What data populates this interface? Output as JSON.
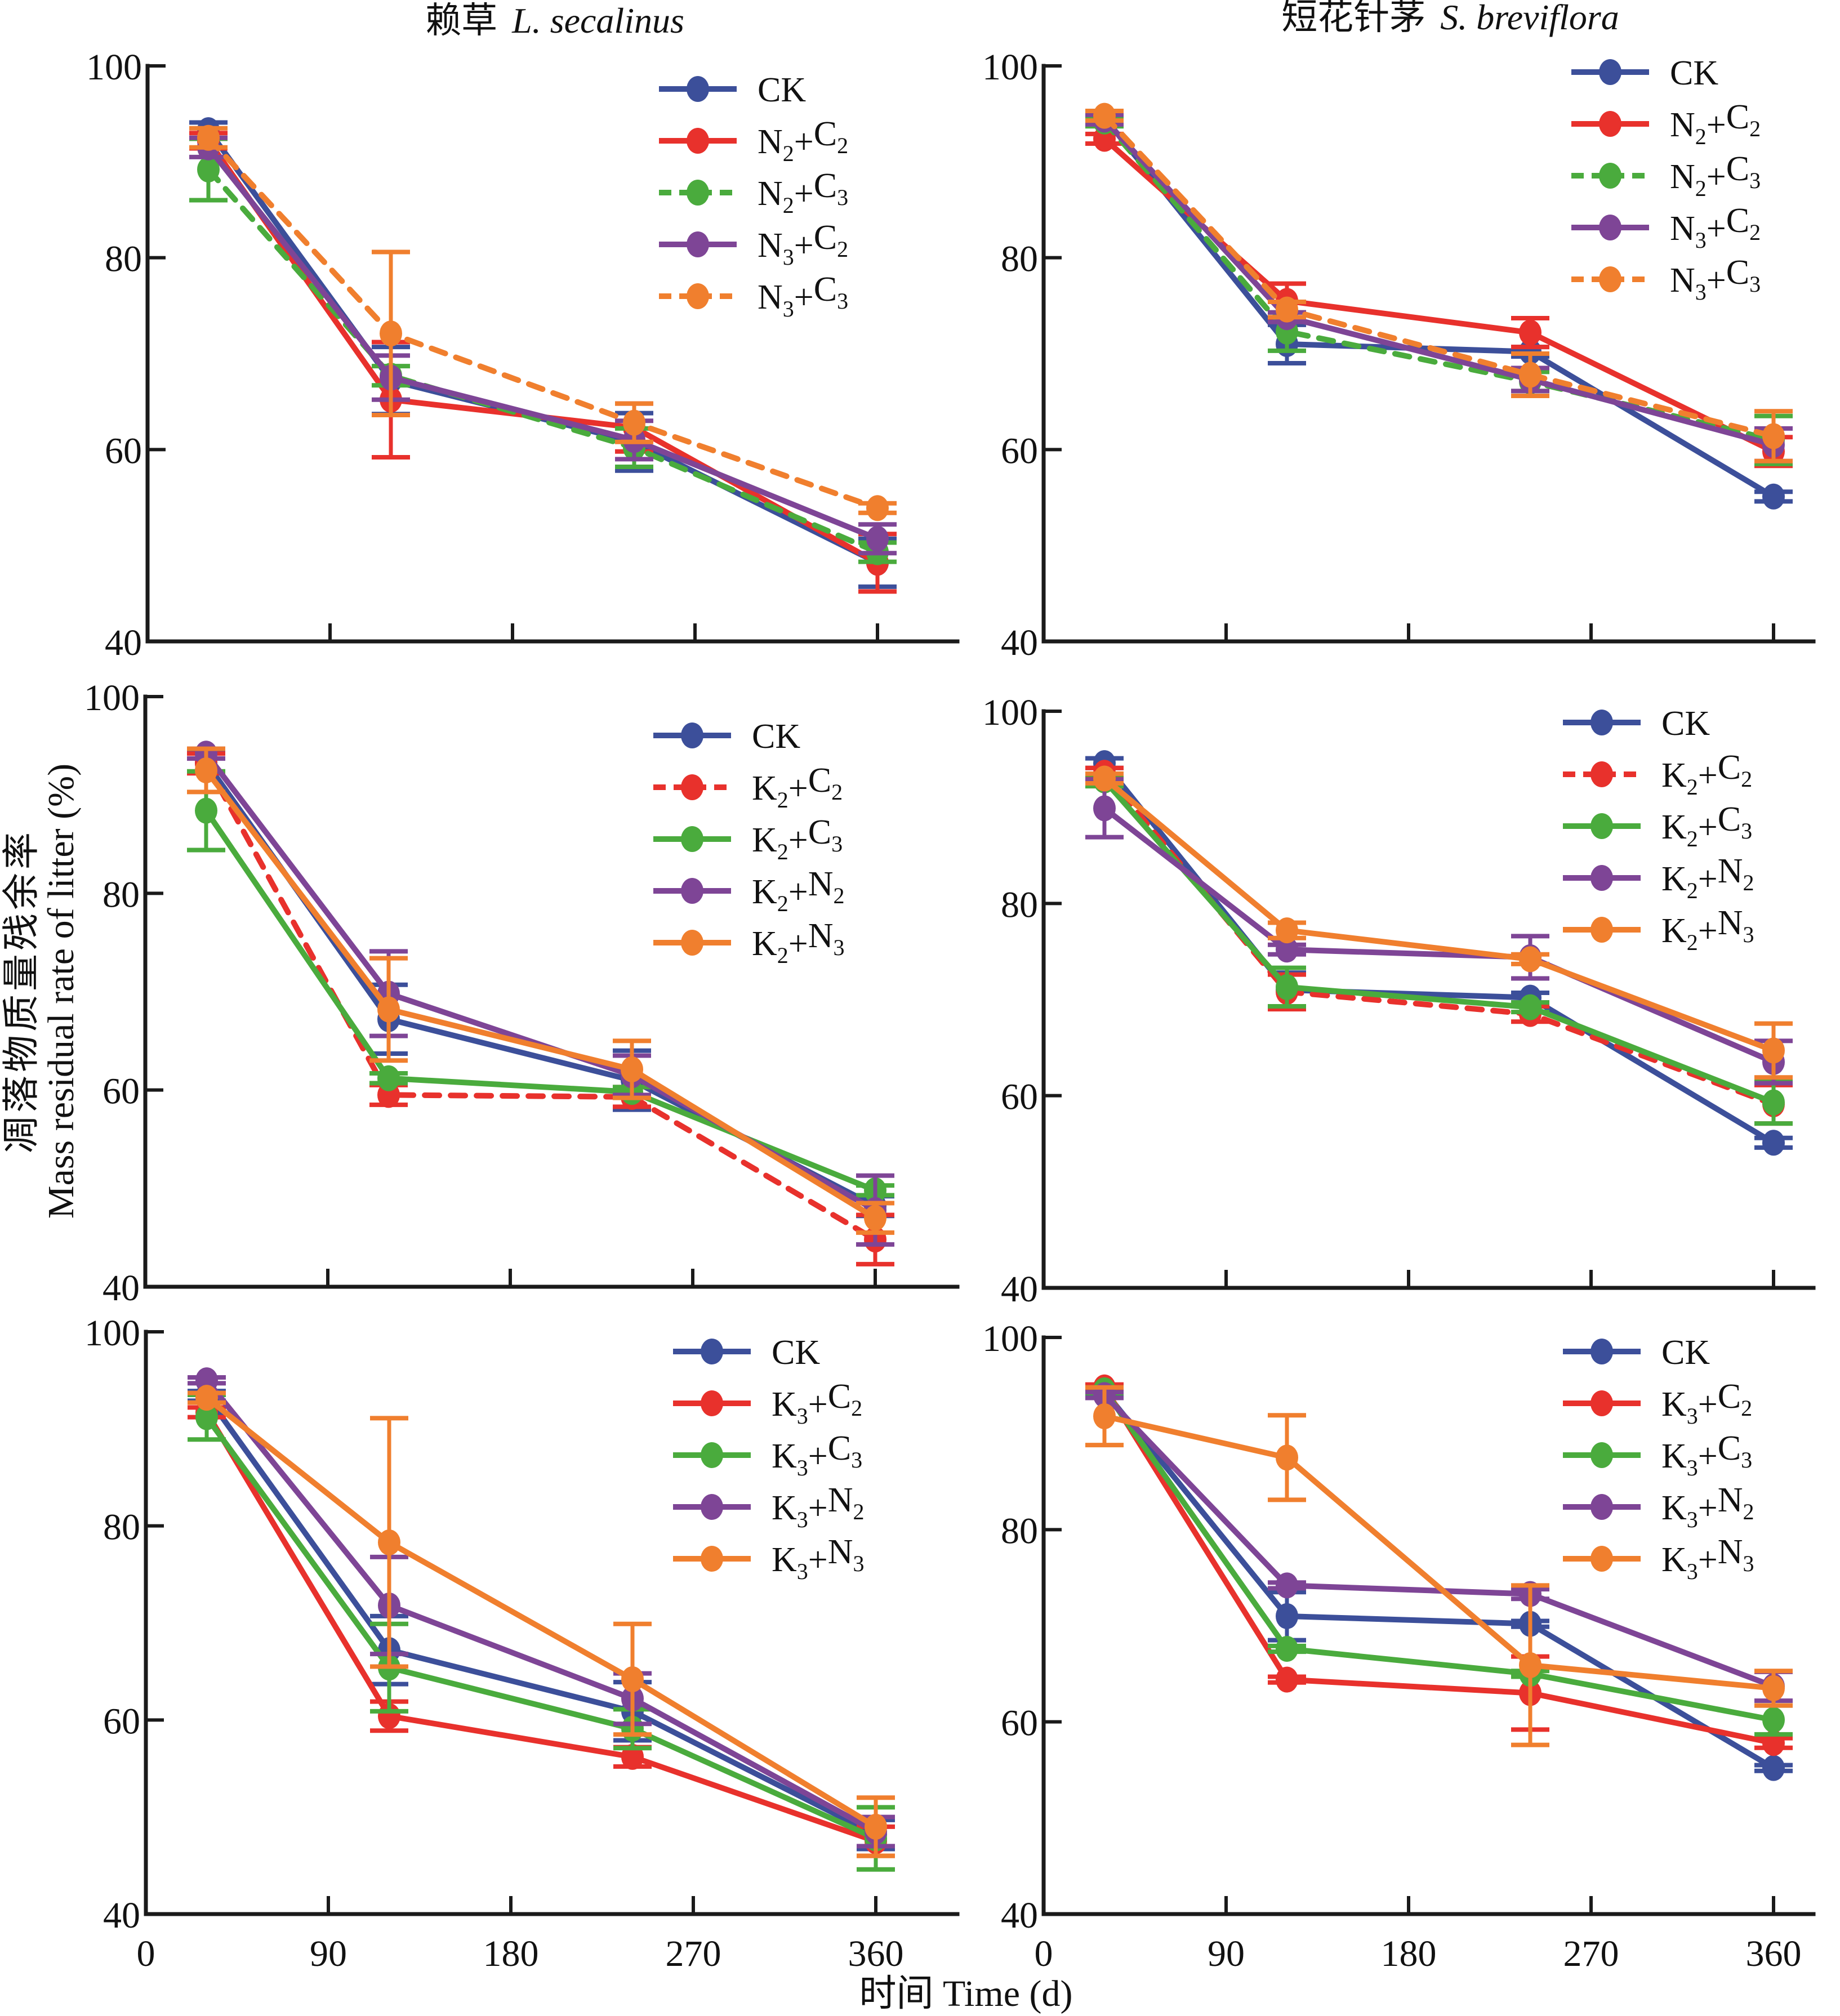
{
  "figure": {
    "ylabel_cn": "凋落物质量残余率",
    "ylabel_en": "Mass residual rate of litter (%)",
    "xlabel": "时间 Time (d)",
    "column_titles": [
      {
        "cn": "赖草",
        "latin": "L. secalinus"
      },
      {
        "cn": "短花针茅",
        "latin": "S. breviflora"
      }
    ]
  },
  "colors": {
    "CK": "#3c4f9a",
    "red": "#e8312c",
    "green": "#4aab3d",
    "purple": "#7e4596",
    "orange": "#f07f2e",
    "axis": "#1a1a1a"
  },
  "chart_data": [
    {
      "type": "line",
      "panel": "top-left",
      "title": "赖草 L. secalinus",
      "xlabel": "时间 Time (d)",
      "ylabel": "Mass residual rate of litter (%)",
      "x": [
        30,
        120,
        240,
        360
      ],
      "xlim": [
        0,
        400
      ],
      "ylim": [
        40,
        100
      ],
      "xticks": [
        0,
        90,
        180,
        270,
        360
      ],
      "yticks": [
        40,
        60,
        80,
        100
      ],
      "show_xtick_labels": false,
      "legend_position": "top-right",
      "series": [
        {
          "name": "CK",
          "base": "N",
          "sub1": "",
          "op": "",
          "base2": "",
          "sub2": "",
          "color": "#3c4f9a",
          "dashed": false,
          "values": [
            93.3,
            67.2,
            60.8,
            48.2
          ],
          "errors": [
            0.8,
            3.5,
            3.0,
            2.5
          ]
        },
        {
          "name": "N2+C2",
          "base": "N",
          "sub1": "2",
          "op": "+",
          "base2": "C",
          "sub2": "2",
          "color": "#e8312c",
          "dashed": false,
          "values": [
            92.2,
            65.2,
            62.3,
            48.2
          ],
          "errors": [
            0.8,
            6.0,
            2.5,
            3.0
          ]
        },
        {
          "name": "N2+C3",
          "base": "N",
          "sub1": "2",
          "op": "+",
          "base2": "C",
          "sub2": "3",
          "color": "#4aab3d",
          "dashed": true,
          "values": [
            89.2,
            67.7,
            60.2,
            49.3
          ],
          "errors": [
            3.2,
            1.0,
            2.0,
            1.0
          ]
        },
        {
          "name": "N3+C2",
          "base": "N",
          "sub1": "3",
          "op": "+",
          "base2": "C",
          "sub2": "2",
          "color": "#7e4596",
          "dashed": false,
          "values": [
            91.5,
            67.5,
            61.0,
            50.7
          ],
          "errors": [
            1.0,
            2.3,
            2.0,
            1.5
          ]
        },
        {
          "name": "N3+C3",
          "base": "N",
          "sub1": "3",
          "op": "+",
          "base2": "C",
          "sub2": "3",
          "color": "#f07f2e",
          "dashed": true,
          "values": [
            92.5,
            72.1,
            62.8,
            53.9
          ],
          "errors": [
            1.0,
            8.5,
            2.0,
            0.5
          ]
        }
      ]
    },
    {
      "type": "line",
      "panel": "top-right",
      "title": "短花针茅 S. breviflora",
      "x": [
        30,
        120,
        240,
        360
      ],
      "xlim": [
        0,
        400
      ],
      "ylim": [
        40,
        100
      ],
      "xticks": [
        0,
        90,
        180,
        270,
        360
      ],
      "yticks": [
        40,
        60,
        80,
        100
      ],
      "show_xtick_labels": false,
      "legend_position": "top-right",
      "series": [
        {
          "name": "CK",
          "color": "#3c4f9a",
          "dashed": false,
          "values": [
            94.6,
            71.0,
            70.2,
            55.1
          ],
          "errors": [
            0.5,
            2.0,
            0.5,
            0.5
          ]
        },
        {
          "name": "N2+C2",
          "color": "#e8312c",
          "dashed": false,
          "values": [
            92.4,
            75.5,
            72.2,
            59.8
          ],
          "errors": [
            0.5,
            1.8,
            1.5,
            1.5
          ]
        },
        {
          "name": "N2+C3",
          "color": "#4aab3d",
          "dashed": true,
          "values": [
            94.2,
            72.3,
            67.1,
            61.0
          ],
          "errors": [
            0.5,
            2.0,
            1.0,
            2.5
          ]
        },
        {
          "name": "N3+C2",
          "color": "#7e4596",
          "dashed": false,
          "values": [
            94.4,
            73.8,
            67.3,
            60.5
          ],
          "errors": [
            0.5,
            0.5,
            1.2,
            1.7
          ]
        },
        {
          "name": "N3+C3",
          "color": "#f07f2e",
          "dashed": true,
          "values": [
            94.8,
            74.6,
            67.8,
            61.4
          ],
          "errors": [
            0.5,
            0.8,
            2.2,
            2.6
          ]
        }
      ]
    },
    {
      "type": "line",
      "panel": "middle-left",
      "x": [
        30,
        120,
        240,
        360
      ],
      "xlim": [
        0,
        400
      ],
      "ylim": [
        40,
        100
      ],
      "xticks": [
        0,
        90,
        180,
        270,
        360
      ],
      "yticks": [
        40,
        60,
        80,
        100
      ],
      "show_xtick_labels": false,
      "legend_position": "top-right",
      "series": [
        {
          "name": "CK",
          "color": "#3c4f9a",
          "dashed": false,
          "values": [
            93.3,
            67.2,
            61.0,
            48.2
          ],
          "errors": [
            1.0,
            3.5,
            3.0,
            1.0
          ]
        },
        {
          "name": "K2+C2",
          "color": "#e8312c",
          "dashed": true,
          "values": [
            93.2,
            59.5,
            59.3,
            44.8
          ],
          "errors": [
            1.0,
            1.0,
            1.0,
            2.5
          ]
        },
        {
          "name": "K2+C3",
          "color": "#4aab3d",
          "dashed": false,
          "values": [
            88.4,
            61.2,
            59.8,
            49.8
          ],
          "errors": [
            4.0,
            0.5,
            0.5,
            0.5
          ]
        },
        {
          "name": "K2+N2",
          "color": "#7e4596",
          "dashed": false,
          "values": [
            94.2,
            69.8,
            61.5,
            47.8
          ],
          "errors": [
            0.5,
            4.3,
            2.0,
            3.5
          ]
        },
        {
          "name": "K2+N3",
          "color": "#f07f2e",
          "dashed": false,
          "values": [
            92.5,
            68.2,
            62.1,
            47.0
          ],
          "errors": [
            2.2,
            5.2,
            2.9,
            1.5
          ]
        }
      ]
    },
    {
      "type": "line",
      "panel": "middle-right",
      "x": [
        30,
        120,
        240,
        360
      ],
      "xlim": [
        0,
        400
      ],
      "ylim": [
        40,
        100
      ],
      "xticks": [
        0,
        90,
        180,
        270,
        360
      ],
      "yticks": [
        40,
        60,
        80,
        100
      ],
      "show_xtick_labels": false,
      "legend_position": "top-right",
      "series": [
        {
          "name": "CK",
          "color": "#3c4f9a",
          "dashed": false,
          "values": [
            94.6,
            71.0,
            70.2,
            55.1
          ],
          "errors": [
            0.5,
            1.8,
            0.5,
            0.5
          ]
        },
        {
          "name": "K2+C2",
          "color": "#e8312c",
          "dashed": true,
          "values": [
            93.6,
            70.8,
            68.5,
            59.1
          ],
          "errors": [
            0.5,
            1.8,
            0.8,
            2.0
          ]
        },
        {
          "name": "K2+C3",
          "color": "#4aab3d",
          "dashed": false,
          "values": [
            92.8,
            71.3,
            69.2,
            59.3
          ],
          "errors": [
            0.6,
            2.0,
            0.5,
            2.2
          ]
        },
        {
          "name": "K2+N2",
          "color": "#7e4596",
          "dashed": false,
          "values": [
            89.9,
            75.2,
            74.4,
            63.5
          ],
          "errors": [
            3.0,
            0.5,
            2.2,
            2.2
          ]
        },
        {
          "name": "K2+N3",
          "color": "#f07f2e",
          "dashed": false,
          "values": [
            93.0,
            77.2,
            74.2,
            64.7
          ],
          "errors": [
            0.5,
            0.8,
            0.5,
            2.8
          ]
        }
      ]
    },
    {
      "type": "line",
      "panel": "bottom-left",
      "x": [
        30,
        120,
        240,
        360
      ],
      "xlim": [
        0,
        400
      ],
      "ylim": [
        40,
        100
      ],
      "xticks": [
        0,
        90,
        180,
        270,
        360
      ],
      "yticks": [
        40,
        60,
        80,
        100
      ],
      "show_xtick_labels": true,
      "legend_position": "top-right",
      "series": [
        {
          "name": "CK",
          "color": "#3c4f9a",
          "dashed": false,
          "values": [
            93.4,
            67.2,
            60.9,
            48.2
          ],
          "errors": [
            0.5,
            3.5,
            3.0,
            1.5
          ]
        },
        {
          "name": "K3+C2",
          "color": "#e8312c",
          "dashed": false,
          "values": [
            91.7,
            60.4,
            56.2,
            47.5
          ],
          "errors": [
            0.5,
            1.5,
            1.0,
            1.5
          ]
        },
        {
          "name": "K3+C3",
          "color": "#4aab3d",
          "dashed": false,
          "values": [
            91.2,
            65.4,
            59.1,
            47.8
          ],
          "errors": [
            2.3,
            4.5,
            2.0,
            3.2
          ]
        },
        {
          "name": "K3+N2",
          "color": "#7e4596",
          "dashed": false,
          "values": [
            95.0,
            71.8,
            62.2,
            48.5
          ],
          "errors": [
            0.3,
            5.0,
            2.6,
            1.5
          ]
        },
        {
          "name": "K3+N3",
          "color": "#f07f2e",
          "dashed": false,
          "values": [
            93.2,
            78.3,
            64.2,
            49.0
          ],
          "errors": [
            0.5,
            12.8,
            5.7,
            3.0
          ]
        }
      ]
    },
    {
      "type": "line",
      "panel": "bottom-right",
      "x": [
        30,
        120,
        240,
        360
      ],
      "xlim": [
        0,
        400
      ],
      "ylim": [
        40,
        100
      ],
      "xticks": [
        0,
        90,
        180,
        270,
        360
      ],
      "yticks": [
        40,
        60,
        80,
        100
      ],
      "show_xtick_labels": true,
      "legend_position": "top-right",
      "series": [
        {
          "name": "CK",
          "color": "#3c4f9a",
          "dashed": false,
          "values": [
            94.4,
            71.0,
            70.2,
            55.2
          ],
          "errors": [
            0.3,
            2.5,
            0.3,
            0.3
          ]
        },
        {
          "name": "K3+C2",
          "color": "#e8312c",
          "dashed": false,
          "values": [
            94.8,
            64.4,
            63.0,
            57.8
          ],
          "errors": [
            0.3,
            0.3,
            3.8,
            0.5
          ]
        },
        {
          "name": "K3+C3",
          "color": "#4aab3d",
          "dashed": false,
          "values": [
            94.5,
            67.6,
            65.0,
            60.2
          ],
          "errors": [
            0.3,
            0.3,
            0.3,
            1.5
          ]
        },
        {
          "name": "K3+N2",
          "color": "#7e4596",
          "dashed": false,
          "values": [
            94.0,
            74.2,
            73.3,
            63.7
          ],
          "errors": [
            0.3,
            0.3,
            0.5,
            1.5
          ]
        },
        {
          "name": "K3+N3",
          "color": "#f07f2e",
          "dashed": false,
          "values": [
            91.8,
            87.5,
            65.9,
            63.5
          ],
          "errors": [
            3.0,
            4.4,
            8.3,
            1.8
          ]
        }
      ]
    }
  ]
}
